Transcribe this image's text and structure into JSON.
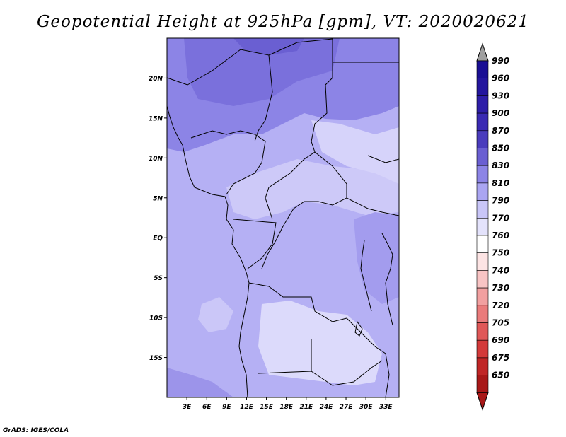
{
  "title": "Geopotential Height at 925hPa [gpm], VT: 2020020621",
  "credit": "GrADS: IGES/COLA",
  "map": {
    "lat_labels": [
      {
        "text": "20N",
        "lat": 20
      },
      {
        "text": "15N",
        "lat": 15
      },
      {
        "text": "10N",
        "lat": 10
      },
      {
        "text": "5N",
        "lat": 5
      },
      {
        "text": "EQ",
        "lat": 0
      },
      {
        "text": "5S",
        "lat": -5
      },
      {
        "text": "10S",
        "lat": -10
      },
      {
        "text": "15S",
        "lat": -15
      }
    ],
    "lon_labels": [
      {
        "text": "3E",
        "lon": 3
      },
      {
        "text": "6E",
        "lon": 6
      },
      {
        "text": "9E",
        "lon": 9
      },
      {
        "text": "12E",
        "lon": 12
      },
      {
        "text": "15E",
        "lon": 15
      },
      {
        "text": "18E",
        "lon": 18
      },
      {
        "text": "21E",
        "lon": 21
      },
      {
        "text": "24E",
        "lon": 24
      },
      {
        "text": "27E",
        "lon": 27
      },
      {
        "text": "30E",
        "lon": 30
      },
      {
        "text": "33E",
        "lon": 33
      }
    ],
    "lon_range": [
      0,
      35
    ],
    "lat_range": [
      -20,
      25
    ]
  },
  "colorbar": {
    "levels": [
      {
        "label": "990",
        "color": "#1a0f94"
      },
      {
        "label": "960",
        "color": "#24169e"
      },
      {
        "label": "930",
        "color": "#2e1ea8"
      },
      {
        "label": "900",
        "color": "#3a2ab3"
      },
      {
        "label": "870",
        "color": "#4a3cbd"
      },
      {
        "label": "850",
        "color": "#6a5fd2"
      },
      {
        "label": "830",
        "color": "#8c84e6"
      },
      {
        "label": "810",
        "color": "#aaa5f2"
      },
      {
        "label": "790",
        "color": "#c9c6f8"
      },
      {
        "label": "770",
        "color": "#e4e3fc"
      },
      {
        "label": "760",
        "color": "#ffffff"
      },
      {
        "label": "750",
        "color": "#fde4e4"
      },
      {
        "label": "740",
        "color": "#f9c4c4"
      },
      {
        "label": "730",
        "color": "#f2a0a0"
      },
      {
        "label": "720",
        "color": "#ea7b7b"
      },
      {
        "label": "705",
        "color": "#e05858"
      },
      {
        "label": "690",
        "color": "#d43a3a"
      },
      {
        "label": "675",
        "color": "#c02626"
      },
      {
        "label": "650",
        "color": "#a81818"
      }
    ],
    "top_arrow_color": "#a0a0a0",
    "bottom_arrow_color": "#a81818"
  }
}
